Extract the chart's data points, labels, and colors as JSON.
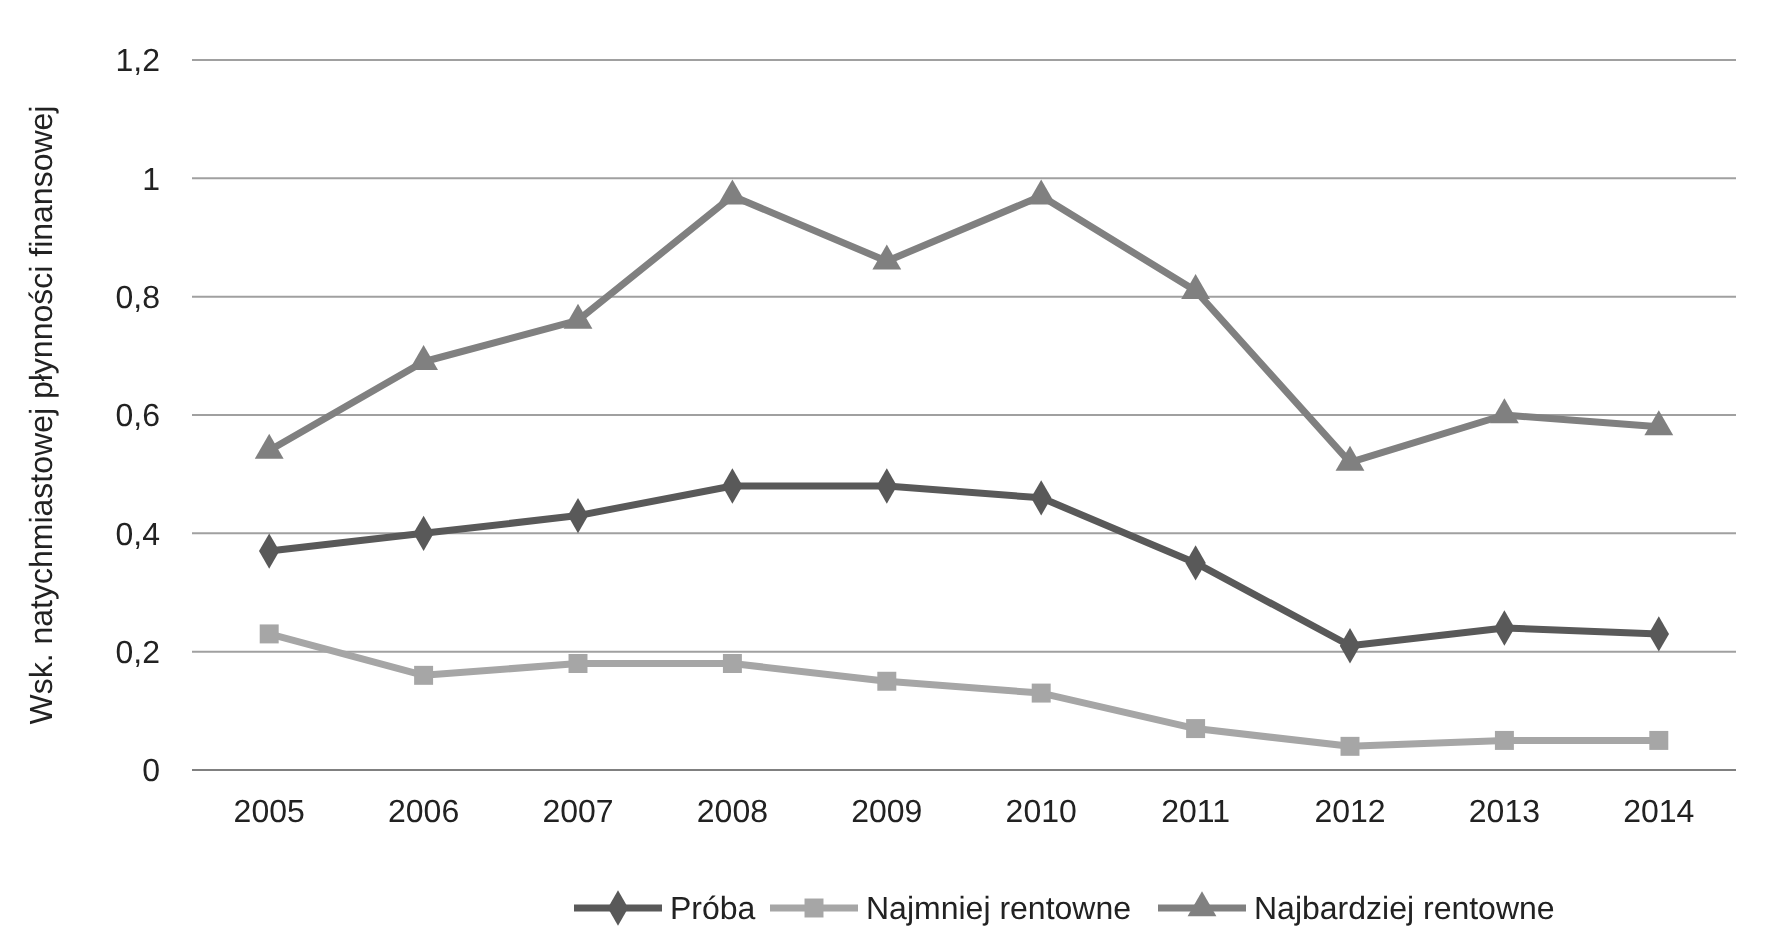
{
  "chart_data": {
    "type": "line",
    "ylabel": "Wsk. natychmiastowej płynności finansowej",
    "categories": [
      "2005",
      "2006",
      "2007",
      "2008",
      "2009",
      "2010",
      "2011",
      "2012",
      "2013",
      "2014"
    ],
    "series": [
      {
        "name": "Próba",
        "color": "#595959",
        "marker": "diamond",
        "values": [
          0.37,
          0.4,
          0.43,
          0.48,
          0.48,
          0.46,
          0.35,
          0.21,
          0.24,
          0.23
        ]
      },
      {
        "name": "Najmniej rentowne",
        "color": "#a6a6a6",
        "marker": "square",
        "values": [
          0.23,
          0.16,
          0.18,
          0.18,
          0.15,
          0.13,
          0.07,
          0.04,
          0.05,
          0.05
        ]
      },
      {
        "name": "Najbardziej rentowne",
        "color": "#808080",
        "marker": "triangle",
        "values": [
          0.54,
          0.69,
          0.76,
          0.97,
          0.86,
          0.97,
          0.81,
          0.52,
          0.6,
          0.58
        ]
      }
    ],
    "ylim": [
      0,
      1.2
    ],
    "yticks": [
      0,
      {
        "value": 0.2,
        "label": "0,2"
      },
      {
        "value": 0.4,
        "label": "0,4"
      },
      {
        "value": 0.6,
        "label": "0,6"
      },
      {
        "value": 0.8,
        "label": "0,8"
      },
      1,
      {
        "value": 1.2,
        "label": "1,2"
      }
    ],
    "grid": "y",
    "legend": "bottom"
  }
}
